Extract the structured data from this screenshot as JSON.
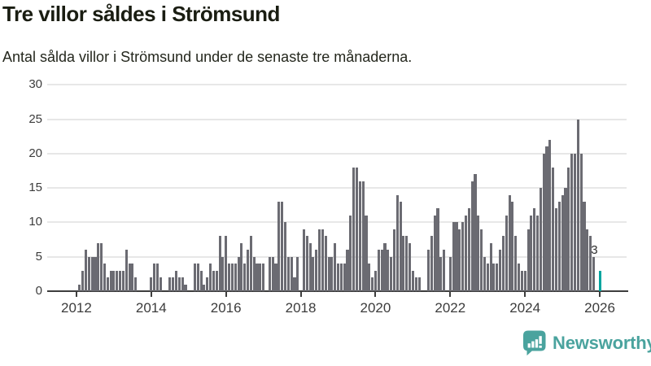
{
  "chart_data": {
    "type": "bar",
    "title": "Tre villor såldes i Strömsund",
    "subtitle": "Antal sålda villor i Strömsund under de senaste tre månaderna.",
    "x_start_month": "2012-01",
    "x_tick_labels": [
      "2012",
      "2014",
      "2016",
      "2018",
      "2020",
      "2022",
      "2024",
      "2026"
    ],
    "y_tick_labels": [
      "0",
      "5",
      "10",
      "15",
      "20",
      "25",
      "30"
    ],
    "y_ticks": [
      0,
      5,
      10,
      15,
      20,
      25,
      30
    ],
    "ylim": [
      0,
      30
    ],
    "grid": true,
    "legend": "none",
    "bar_color": "#6b6b72",
    "values": [
      0,
      1,
      3,
      6,
      5,
      5,
      5,
      7,
      7,
      4,
      2,
      3,
      3,
      3,
      3,
      3,
      6,
      4,
      4,
      2,
      0,
      0,
      0,
      0,
      2,
      4,
      4,
      2,
      0,
      0,
      2,
      2,
      3,
      2,
      2,
      1,
      0,
      0,
      4,
      4,
      3,
      1,
      2,
      4,
      3,
      3,
      8,
      5,
      8,
      4,
      4,
      4,
      5,
      7,
      4,
      6,
      8,
      5,
      4,
      4,
      4,
      0,
      5,
      5,
      4,
      13,
      13,
      10,
      5,
      5,
      2,
      5,
      0,
      9,
      8,
      7,
      5,
      6,
      9,
      9,
      8,
      5,
      5,
      7,
      4,
      4,
      4,
      6,
      11,
      18,
      18,
      16,
      16,
      11,
      4,
      2,
      3,
      6,
      6,
      7,
      6,
      5,
      9,
      14,
      13,
      8,
      8,
      7,
      3,
      2,
      2,
      0,
      0,
      6,
      8,
      11,
      12,
      5,
      6,
      0,
      5,
      10,
      10,
      9,
      10,
      11,
      12,
      16,
      17,
      11,
      9,
      5,
      4,
      7,
      4,
      4,
      6,
      8,
      11,
      14,
      13,
      8,
      4,
      3,
      3,
      9,
      11,
      12,
      11,
      15,
      20,
      21,
      22,
      18,
      12,
      13,
      14,
      15,
      18,
      20,
      20,
      25,
      20,
      13,
      9,
      8,
      5,
      0,
      3
    ],
    "highlight": {
      "index": 168,
      "value": 3,
      "label": "3",
      "color": "#00a5a0"
    }
  },
  "logo": {
    "text": "Newsworthy",
    "color": "#4aa39e",
    "icon": "newsworthy-speech-bubble-bar-chart-icon"
  }
}
